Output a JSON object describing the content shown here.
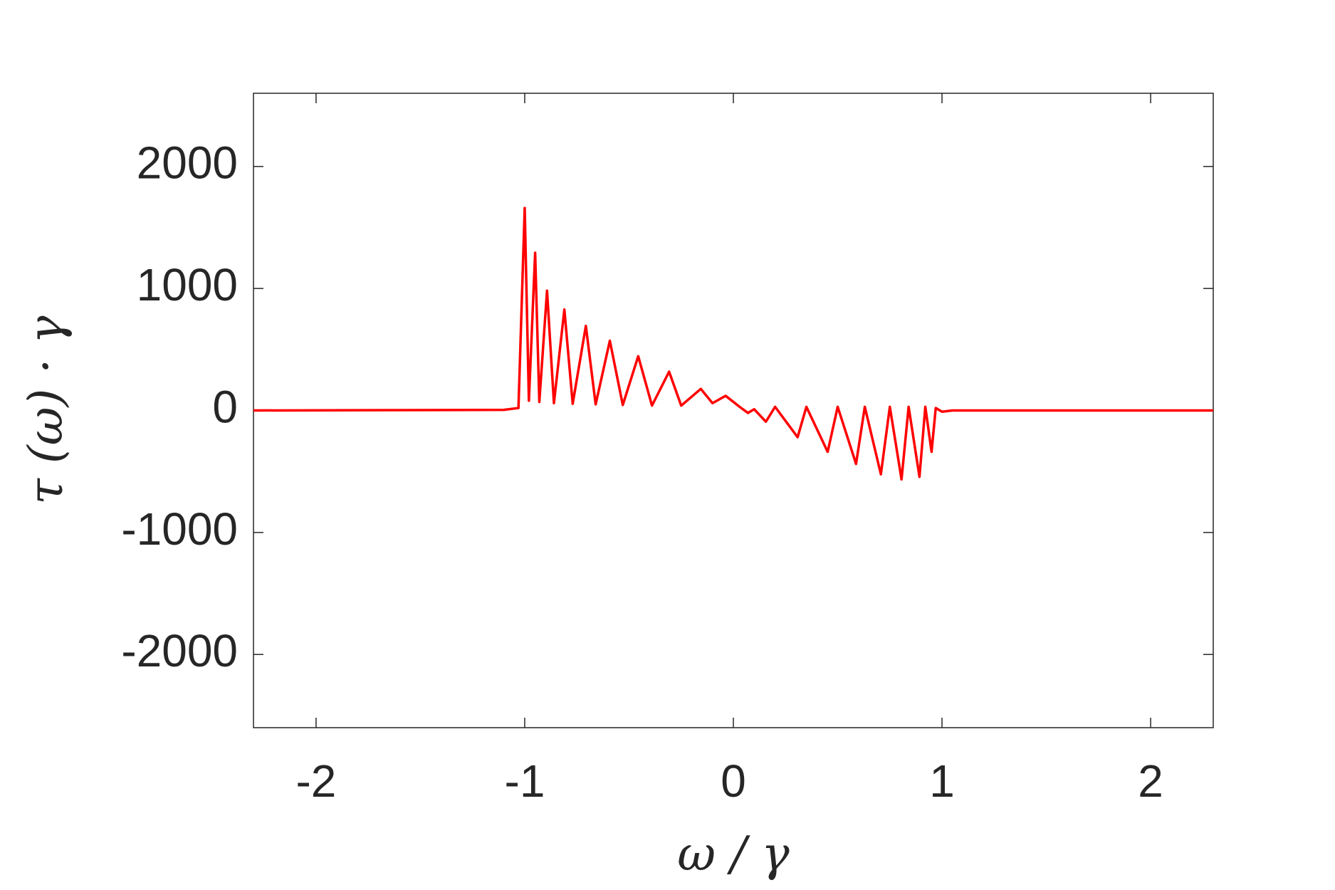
{
  "chart_data": {
    "type": "line",
    "xlabel": "ω / γ",
    "ylabel": "τ (ω) · γ",
    "x": [
      -2.3,
      -1.1,
      -1.03,
      -1.0,
      -0.98,
      -0.95,
      -0.93,
      -0.893,
      -0.86,
      -0.81,
      -0.77,
      -0.707,
      -0.66,
      -0.592,
      -0.53,
      -0.456,
      -0.39,
      -0.308,
      -0.25,
      -0.156,
      -0.1,
      -0.037,
      0.03,
      0.07,
      0.1,
      0.156,
      0.2,
      0.308,
      0.35,
      0.452,
      0.5,
      0.588,
      0.63,
      0.707,
      0.75,
      0.806,
      0.84,
      0.892,
      0.92,
      0.95,
      0.97,
      1.0,
      1.05,
      2.3
    ],
    "series": [
      {
        "color": "#ff0000",
        "values": [
          0,
          5,
          20,
          1660,
          80,
          1293,
          70,
          982,
          60,
          827,
          55,
          693,
          50,
          572,
          45,
          445,
          40,
          318,
          40,
          177,
          60,
          120,
          30,
          -20,
          10,
          -92,
          30,
          -219,
          30,
          -339,
          30,
          -438,
          30,
          -523,
          30,
          -565,
          30,
          -544,
          30,
          -339,
          20,
          -10,
          0,
          0
        ]
      }
    ],
    "xlim": [
      -2.3,
      2.3
    ],
    "ylim": [
      -2600,
      2600
    ],
    "xticks": [
      -2,
      -1,
      0,
      1,
      2
    ],
    "yticks": [
      -2000,
      -1000,
      0,
      1000,
      2000
    ],
    "grid": false
  }
}
